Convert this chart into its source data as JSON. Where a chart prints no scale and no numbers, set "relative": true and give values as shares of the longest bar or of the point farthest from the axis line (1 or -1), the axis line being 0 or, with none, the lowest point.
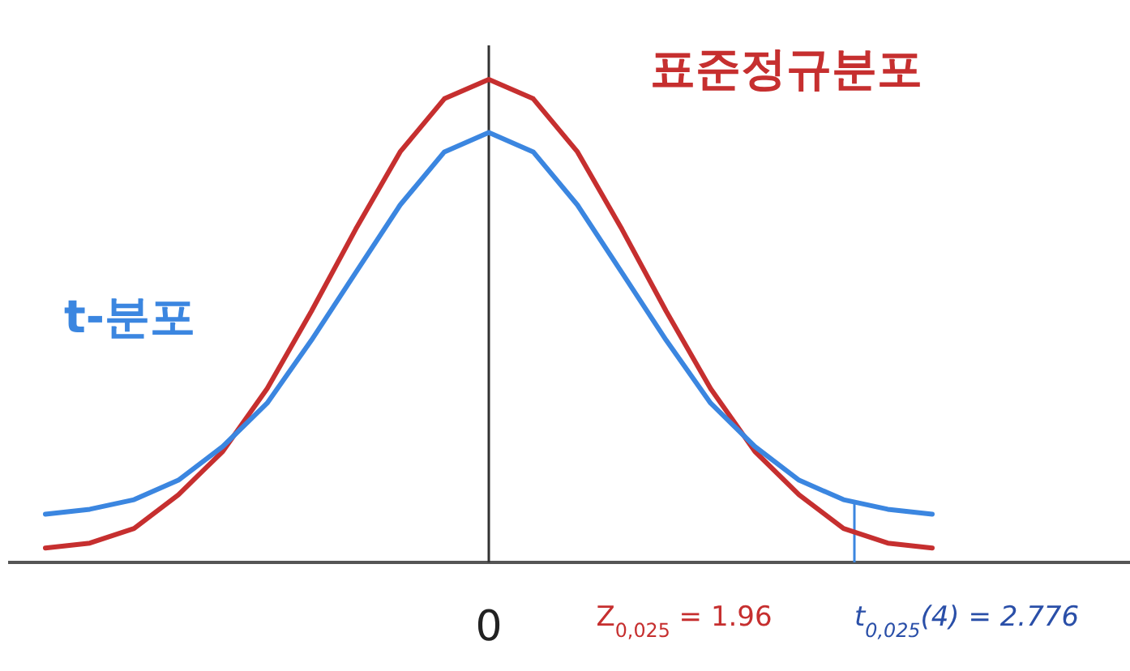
{
  "chart_data": {
    "type": "line",
    "relative": true,
    "categories": [
      null,
      null,
      null,
      null,
      null,
      null,
      null,
      null,
      null,
      null,
      null,
      null,
      null,
      null,
      null,
      null,
      null,
      null,
      null,
      null,
      null
    ],
    "series": [
      {
        "name": "표준정규분포",
        "color": "#c62f2f",
        "values": [
          0.03,
          0.04,
          0.07,
          0.14,
          0.23,
          0.36,
          0.52,
          0.69,
          0.85,
          0.96,
          1,
          0.96,
          0.85,
          0.69,
          0.52,
          0.36,
          0.23,
          0.14,
          0.07,
          0.04,
          0.03
        ]
      },
      {
        "name": "t-분포",
        "color": "#3b86e0",
        "values": [
          0.1,
          0.11,
          0.13,
          0.17,
          0.24,
          0.33,
          0.46,
          0.6,
          0.74,
          0.85,
          0.89,
          0.85,
          0.74,
          0.6,
          0.46,
          0.33,
          0.24,
          0.17,
          0.13,
          0.11,
          0.1
        ]
      }
    ],
    "annotations": [
      "0",
      "Z$_{0,025}$ = 1.96",
      "t$_{0,025}$(4) = 2.776"
    ]
  }
}
